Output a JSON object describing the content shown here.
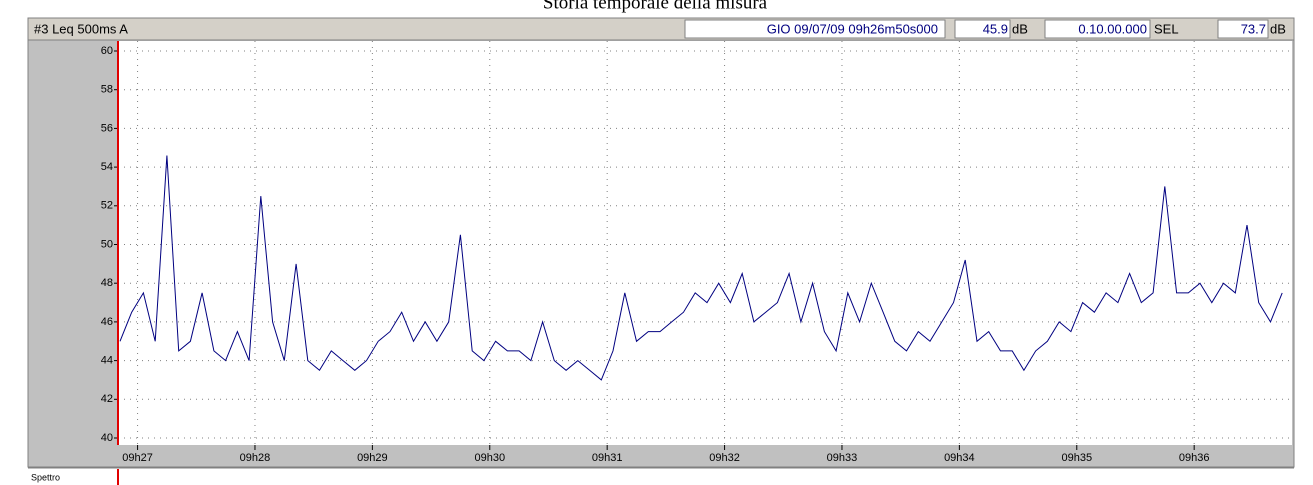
{
  "chart_data": {
    "type": "line",
    "title": "Storia temporale della misura",
    "header": {
      "channel": "#3  Leq 500ms  A",
      "start": "GIO 09/07/09 09h26m50s000",
      "level": "45.9",
      "level_unit": "dB",
      "duration": "0.10.00.000",
      "sel_label": "SEL",
      "sel": "73.7",
      "sel_unit": "dB"
    },
    "panel_label": "Spettro",
    "xlim": [
      26.8333,
      36.8333
    ],
    "xticks": [
      {
        "value": 27,
        "label": "09h27"
      },
      {
        "value": 28,
        "label": "09h28"
      },
      {
        "value": 29,
        "label": "09h29"
      },
      {
        "value": 30,
        "label": "09h30"
      },
      {
        "value": 31,
        "label": "09h31"
      },
      {
        "value": 32,
        "label": "09h32"
      },
      {
        "value": 33,
        "label": "09h33"
      },
      {
        "value": 34,
        "label": "09h34"
      },
      {
        "value": 35,
        "label": "09h35"
      },
      {
        "value": 36,
        "label": "09h36"
      }
    ],
    "ylim": [
      40,
      60
    ],
    "yticks": [
      40,
      42,
      44,
      46,
      48,
      50,
      52,
      54,
      56,
      58,
      60
    ],
    "grid": true,
    "x": [
      26.85,
      26.95,
      27.05,
      27.15,
      27.25,
      27.35,
      27.45,
      27.55,
      27.65,
      27.75,
      27.85,
      27.95,
      28.05,
      28.15,
      28.25,
      28.35,
      28.45,
      28.55,
      28.65,
      28.75,
      28.85,
      28.95,
      29.05,
      29.15,
      29.25,
      29.35,
      29.45,
      29.55,
      29.65,
      29.75,
      29.85,
      29.95,
      30.05,
      30.15,
      30.25,
      30.35,
      30.45,
      30.55,
      30.65,
      30.75,
      30.85,
      30.95,
      31.05,
      31.15,
      31.25,
      31.35,
      31.45,
      31.55,
      31.65,
      31.75,
      31.85,
      31.95,
      32.05,
      32.15,
      32.25,
      32.35,
      32.45,
      32.55,
      32.65,
      32.75,
      32.85,
      32.95,
      33.05,
      33.15,
      33.25,
      33.35,
      33.45,
      33.55,
      33.65,
      33.75,
      33.85,
      33.95,
      34.05,
      34.15,
      34.25,
      34.35,
      34.45,
      34.55,
      34.65,
      34.75,
      34.85,
      34.95,
      35.05,
      35.15,
      35.25,
      35.35,
      35.45,
      35.55,
      35.65,
      35.75,
      35.85,
      35.95,
      36.05,
      36.15,
      36.25,
      36.35,
      36.45,
      36.55,
      36.65,
      36.75
    ],
    "series": [
      {
        "name": "Leq",
        "color": "#000080",
        "values": [
          45,
          46.5,
          47.5,
          45,
          54.6,
          44.5,
          45,
          47.5,
          44.5,
          44,
          45.5,
          44,
          52.5,
          46,
          44,
          49,
          44,
          43.5,
          44.5,
          44,
          43.5,
          44,
          45,
          45.5,
          46.5,
          45,
          46,
          45,
          46,
          50.5,
          44.5,
          44,
          45,
          44.5,
          44.5,
          44,
          46,
          44,
          43.5,
          44,
          43.5,
          43,
          44.5,
          47.5,
          45,
          45.5,
          45.5,
          46,
          46.5,
          47.5,
          47,
          48,
          47,
          48.5,
          46,
          46.5,
          47,
          48.5,
          46,
          48,
          45.5,
          44.5,
          47.5,
          46,
          48,
          46.5,
          45,
          44.5,
          45.5,
          45,
          46,
          47,
          49.2,
          45,
          45.5,
          44.5,
          44.5,
          43.5,
          44.5,
          45,
          46,
          45.5,
          47,
          46.5,
          47.5,
          47,
          48.5,
          47,
          47.5,
          53,
          47.5,
          47.5,
          48,
          47,
          48,
          47.5,
          51,
          47,
          46,
          47.5
        ]
      }
    ]
  }
}
